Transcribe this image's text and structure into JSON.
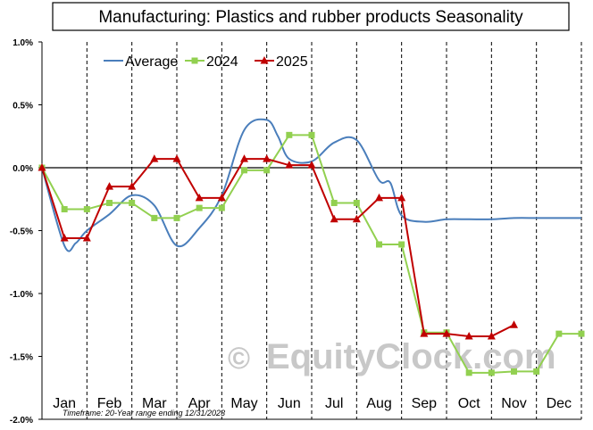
{
  "chart_data": {
    "type": "line",
    "title": "Manufacturing:  Plastics and rubber products Seasonality",
    "categories": [
      "Jan",
      "Feb",
      "Mar",
      "Apr",
      "May",
      "Jun",
      "Jul",
      "Aug",
      "Sep",
      "Oct",
      "Nov",
      "Dec"
    ],
    "ylim": [
      -2.0,
      1.0
    ],
    "yticks": [
      "1.0%",
      "0.5%",
      "0.0%",
      "-0.5%",
      "-1.0%",
      "-1.5%",
      "-2.0%"
    ],
    "ytick_values": [
      1.0,
      0.5,
      0.0,
      -0.5,
      -1.0,
      -1.5,
      -2.0
    ],
    "x_unit": "month position (0 = start of Jan, 12 = end of Dec)",
    "legend_position": "top-left",
    "grid": "dashed vertical month separators; horizontal zero line",
    "series": [
      {
        "name": "Average",
        "color": "#4a7ebb",
        "style": "smooth line",
        "x": [
          0,
          0.5,
          0.75,
          1.0,
          1.5,
          2.0,
          2.5,
          3.0,
          3.5,
          4.0,
          4.5,
          5.0,
          5.25,
          5.5,
          6.0,
          6.5,
          7.0,
          7.5,
          7.75,
          8.0,
          8.5,
          9.0,
          9.5,
          10.0,
          10.5,
          11.0,
          11.5,
          12.0
        ],
        "y": [
          0.0,
          -0.62,
          -0.6,
          -0.5,
          -0.37,
          -0.22,
          -0.3,
          -0.62,
          -0.48,
          -0.22,
          0.3,
          0.38,
          0.25,
          0.07,
          0.05,
          0.2,
          0.22,
          -0.1,
          -0.12,
          -0.38,
          -0.43,
          -0.41,
          -0.41,
          -0.41,
          -0.4,
          -0.4,
          -0.4,
          -0.4
        ]
      },
      {
        "name": "2024",
        "color": "#92d050",
        "marker": "square",
        "x": [
          0,
          0.5,
          1.0,
          1.5,
          2.0,
          2.5,
          3.0,
          3.5,
          4.0,
          4.5,
          5.0,
          5.5,
          6.0,
          6.5,
          7.0,
          7.5,
          8.0,
          8.5,
          9.0,
          9.5,
          10.0,
          10.5,
          11.0,
          11.5,
          12.0
        ],
        "y": [
          0.0,
          -0.33,
          -0.33,
          -0.28,
          -0.28,
          -0.4,
          -0.4,
          -0.32,
          -0.32,
          -0.02,
          -0.02,
          0.26,
          0.26,
          -0.28,
          -0.28,
          -0.61,
          -0.61,
          -1.31,
          -1.31,
          -1.63,
          -1.63,
          -1.62,
          -1.62,
          -1.32,
          -1.32
        ]
      },
      {
        "name": "2025",
        "color": "#c00000",
        "marker": "triangle",
        "x": [
          0,
          0.5,
          1.0,
          1.5,
          2.0,
          2.5,
          3.0,
          3.5,
          4.0,
          4.5,
          5.0,
          5.5,
          6.0,
          6.5,
          7.0,
          7.5,
          8.0,
          8.5,
          9.0,
          9.5,
          10.0,
          10.5
        ],
        "y": [
          0.0,
          -0.56,
          -0.56,
          -0.15,
          -0.15,
          0.07,
          0.07,
          -0.24,
          -0.24,
          0.07,
          0.07,
          0.02,
          0.02,
          -0.41,
          -0.41,
          -0.24,
          -0.24,
          -1.32,
          -1.32,
          -1.34,
          -1.34,
          -1.25
        ]
      }
    ]
  },
  "footnote": "Timeframe: 20-Year range ending 12/31/2023",
  "watermark": "EquityClock.com",
  "watermark_symbol": "©"
}
